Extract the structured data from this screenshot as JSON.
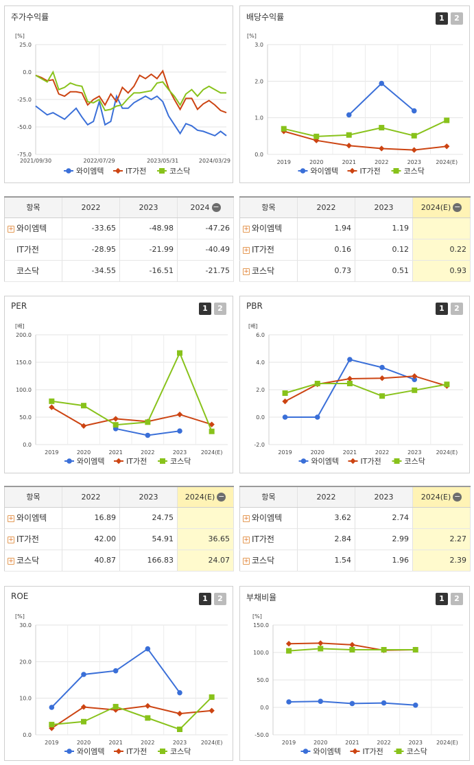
{
  "colors": {
    "wai": "#3a6fd8",
    "it": "#cc4412",
    "kosdaq": "#88c21b",
    "highlight": "#fffacd"
  },
  "tabs": [
    "1",
    "2"
  ],
  "stock_return": {
    "title": "주가수익률",
    "chart_data": {
      "type": "line",
      "title": "주가수익률",
      "unit": "[%]",
      "x_labels": [
        "2021/09/30",
        "2022/07/29",
        "2023/05/31",
        "2024/03/29"
      ],
      "yticks": [
        "25.0",
        "0.0",
        "-25.0",
        "-50.0",
        "-75.0"
      ],
      "ylim": [
        -75,
        25
      ],
      "series": [
        {
          "name": "와이엠텍",
          "values": [
            -31,
            -35,
            -39,
            -37,
            -40,
            -43,
            -38,
            -33,
            -41,
            -48,
            -45,
            -27,
            -48,
            -45,
            -22,
            -33,
            -33,
            -28,
            -25,
            -22,
            -25,
            -22,
            -27,
            -40,
            -48,
            -56,
            -47,
            -49,
            -53,
            -54,
            -56,
            -58,
            -54,
            -58
          ]
        },
        {
          "name": "IT가전",
          "values": [
            -3,
            -5,
            -8,
            -7,
            -20,
            -22,
            -18,
            -18,
            -19,
            -30,
            -25,
            -22,
            -30,
            -20,
            -27,
            -14,
            -19,
            -13,
            -3,
            -6,
            -2,
            -6,
            1,
            -15,
            -25,
            -34,
            -24,
            -24,
            -34,
            -29,
            -26,
            -30,
            -35,
            -37
          ]
        },
        {
          "name": "코스닥",
          "values": [
            -3,
            -6,
            -9,
            0,
            -16,
            -14,
            -10,
            -12,
            -13,
            -27,
            -28,
            -25,
            -35,
            -34,
            -31,
            -30,
            -24,
            -19,
            -19,
            -18,
            -17,
            -10,
            -9,
            -16,
            -22,
            -30,
            -20,
            -16,
            -22,
            -16,
            -13,
            -16,
            -19,
            -19
          ]
        }
      ]
    }
  },
  "dividend": {
    "title": "배당수익률",
    "chart_data": {
      "type": "line",
      "title": "배당수익률",
      "unit": "[%]",
      "categories": [
        "2019",
        "2020",
        "2021",
        "2022",
        "2023",
        "2024(E)"
      ],
      "yticks": [
        "3.0",
        "2.0",
        "1.0",
        "0.0"
      ],
      "ylim": [
        0,
        3
      ],
      "series": [
        {
          "name": "와이엠텍",
          "values": [
            null,
            null,
            1.08,
            1.94,
            1.19,
            null
          ]
        },
        {
          "name": "IT가전",
          "values": [
            0.63,
            0.38,
            0.24,
            0.16,
            0.12,
            0.22
          ]
        },
        {
          "name": "코스닥",
          "values": [
            0.7,
            0.49,
            0.53,
            0.73,
            0.51,
            0.93
          ]
        }
      ]
    }
  },
  "per": {
    "title": "PER",
    "chart_data": {
      "type": "line",
      "title": "PER",
      "unit": "[배]",
      "categories": [
        "2019",
        "2020",
        "2021",
        "2022",
        "2023",
        "2024(E)"
      ],
      "yticks": [
        "200.0",
        "150.0",
        "100.0",
        "50.0",
        "0.0"
      ],
      "ylim": [
        0,
        200
      ],
      "series": [
        {
          "name": "와이엠텍",
          "values": [
            null,
            null,
            29,
            16.89,
            24.75,
            null
          ]
        },
        {
          "name": "IT가전",
          "values": [
            68,
            34,
            47,
            42.0,
            54.91,
            36.65
          ]
        },
        {
          "name": "코스닥",
          "values": [
            79,
            71,
            36,
            40.87,
            166.83,
            24.07
          ]
        }
      ]
    }
  },
  "pbr": {
    "title": "PBR",
    "chart_data": {
      "type": "line",
      "title": "PBR",
      "unit": "[배]",
      "categories": [
        "2019",
        "2020",
        "2021",
        "2022",
        "2023",
        "2024(E)"
      ],
      "yticks": [
        "6.0",
        "4.0",
        "2.0",
        "0.0",
        "-2.0"
      ],
      "ylim": [
        -2,
        6
      ],
      "series": [
        {
          "name": "와이엠텍",
          "values": [
            0,
            0,
            4.2,
            3.62,
            2.74,
            null
          ]
        },
        {
          "name": "IT가전",
          "values": [
            1.15,
            2.4,
            2.8,
            2.84,
            2.99,
            2.27
          ]
        },
        {
          "name": "코스닥",
          "values": [
            1.75,
            2.45,
            2.45,
            1.54,
            1.96,
            2.39
          ]
        }
      ]
    }
  },
  "roe": {
    "title": "ROE",
    "chart_data": {
      "type": "line",
      "title": "ROE",
      "unit": "[%]",
      "categories": [
        "2019",
        "2020",
        "2021",
        "2022",
        "2023",
        "2024(E)"
      ],
      "yticks": [
        "30.0",
        "20.0",
        "10.0",
        "0.0"
      ],
      "ylim": [
        0,
        30
      ],
      "series": [
        {
          "name": "와이엠텍",
          "values": [
            7.5,
            16.5,
            17.5,
            23.5,
            11.5,
            null
          ]
        },
        {
          "name": "IT가전",
          "values": [
            1.8,
            7.6,
            6.8,
            7.9,
            5.8,
            6.6
          ]
        },
        {
          "name": "코스닥",
          "values": [
            2.8,
            3.6,
            7.7,
            4.6,
            1.5,
            10.3
          ]
        }
      ]
    }
  },
  "debt": {
    "title": "부채비율",
    "chart_data": {
      "type": "line",
      "title": "부채비율",
      "unit": "[%]",
      "categories": [
        "2019",
        "2020",
        "2021",
        "2022",
        "2023",
        "2024(E)"
      ],
      "yticks": [
        "150.0",
        "100.0",
        "50.0",
        "0.0",
        "-50.0"
      ],
      "ylim": [
        -50,
        150
      ],
      "series": [
        {
          "name": "와이엠텍",
          "values": [
            10,
            11,
            7,
            8,
            4,
            null
          ]
        },
        {
          "name": "IT가전",
          "values": [
            116,
            117,
            114,
            104,
            105,
            null
          ]
        },
        {
          "name": "코스닥",
          "values": [
            103,
            107,
            105,
            105,
            105,
            null
          ]
        }
      ]
    }
  },
  "table_stock": {
    "header": "항목",
    "cols": [
      "2022",
      "2023",
      "2024"
    ],
    "rows": [
      {
        "name": "와이엠텍",
        "plus": true,
        "vals": [
          "-33.65",
          "-48.98",
          "-47.26"
        ]
      },
      {
        "name": "IT가전",
        "plus": false,
        "vals": [
          "-28.95",
          "-21.99",
          "-40.49"
        ]
      },
      {
        "name": "코스닥",
        "plus": false,
        "vals": [
          "-34.55",
          "-16.51",
          "-21.75"
        ]
      }
    ]
  },
  "table_div": {
    "header": "항목",
    "cols": [
      "2022",
      "2023",
      "2024(E)"
    ],
    "rows": [
      {
        "name": "와이엠텍",
        "plus": true,
        "vals": [
          "1.94",
          "1.19",
          ""
        ]
      },
      {
        "name": "IT가전",
        "plus": true,
        "vals": [
          "0.16",
          "0.12",
          "0.22"
        ]
      },
      {
        "name": "코스닥",
        "plus": true,
        "vals": [
          "0.73",
          "0.51",
          "0.93"
        ]
      }
    ]
  },
  "table_per": {
    "header": "항목",
    "cols": [
      "2022",
      "2023",
      "2024(E)"
    ],
    "rows": [
      {
        "name": "와이엠텍",
        "plus": true,
        "vals": [
          "16.89",
          "24.75",
          ""
        ]
      },
      {
        "name": "IT가전",
        "plus": true,
        "vals": [
          "42.00",
          "54.91",
          "36.65"
        ]
      },
      {
        "name": "코스닥",
        "plus": true,
        "vals": [
          "40.87",
          "166.83",
          "24.07"
        ]
      }
    ]
  },
  "table_pbr": {
    "header": "항목",
    "cols": [
      "2022",
      "2023",
      "2024(E)"
    ],
    "rows": [
      {
        "name": "와이엠텍",
        "plus": true,
        "vals": [
          "3.62",
          "2.74",
          ""
        ]
      },
      {
        "name": "IT가전",
        "plus": true,
        "vals": [
          "2.84",
          "2.99",
          "2.27"
        ]
      },
      {
        "name": "코스닥",
        "plus": true,
        "vals": [
          "1.54",
          "1.96",
          "2.39"
        ]
      }
    ]
  }
}
